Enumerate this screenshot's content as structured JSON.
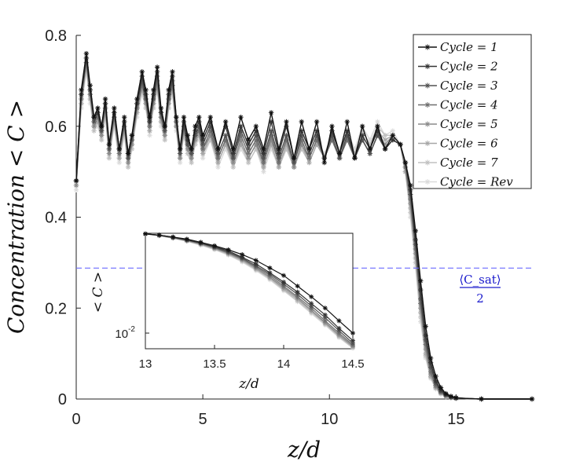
{
  "chart_data": {
    "type": "line",
    "title": "",
    "xlabel": "z/d",
    "ylabel": "Concentration < C >",
    "xlim": [
      0,
      18
    ],
    "ylim": [
      0,
      0.8
    ],
    "xticks": [
      "0",
      "5",
      "10",
      "15"
    ],
    "yticks": [
      "0",
      "0.2",
      "0.4",
      "0.6",
      "0.8"
    ],
    "legend": {
      "placement": "top-right"
    },
    "hline": {
      "y": 0.288,
      "label_num": "⟨C_sat⟩",
      "label_den": "2",
      "color": "#6b6bff"
    },
    "profile_x": [
      0,
      0.2,
      0.4,
      0.55,
      0.7,
      0.85,
      1.0,
      1.15,
      1.3,
      1.5,
      1.7,
      1.9,
      2.05,
      2.2,
      2.4,
      2.6,
      2.75,
      2.9,
      3.05,
      3.2,
      3.35,
      3.5,
      3.65,
      3.8,
      3.95,
      4.1,
      4.25,
      4.4,
      4.55,
      4.7,
      4.85,
      5.0,
      5.3,
      5.6,
      5.9,
      6.2,
      6.5,
      6.8,
      7.1,
      7.4,
      7.7,
      8.0,
      8.3,
      8.6,
      8.9,
      9.2,
      9.5,
      9.8,
      10.1,
      10.4,
      10.7,
      11.0,
      11.3,
      11.6,
      11.9,
      12.2,
      12.5,
      12.8,
      13.0,
      13.2,
      13.4,
      13.6,
      13.8,
      14.0,
      14.2,
      14.4,
      14.6,
      14.8,
      15.0,
      15.5,
      16.0,
      17.0,
      18.0
    ],
    "series": [
      {
        "name": "Cycle = 1",
        "color": "#111111",
        "values": [
          0.48,
          0.68,
          0.76,
          0.69,
          0.62,
          0.64,
          0.6,
          0.66,
          0.56,
          0.64,
          0.55,
          0.62,
          0.54,
          0.58,
          0.66,
          0.72,
          0.68,
          0.62,
          0.68,
          0.73,
          0.64,
          0.6,
          0.68,
          0.72,
          0.62,
          0.55,
          0.62,
          0.58,
          0.55,
          0.6,
          0.62,
          0.58,
          0.62,
          0.55,
          0.61,
          0.55,
          0.62,
          0.57,
          0.6,
          0.55,
          0.63,
          0.55,
          0.61,
          0.53,
          0.61,
          0.55,
          0.61,
          0.52,
          0.6,
          0.54,
          0.61,
          0.53,
          0.6,
          0.55,
          0.6,
          0.55,
          0.58,
          0.56,
          0.52,
          0.47,
          0.37,
          0.26,
          0.16,
          0.09,
          0.05,
          0.025,
          0.012,
          0.006,
          0.003,
          0.001,
          0.0,
          0.0,
          0.0
        ]
      },
      {
        "name": "Cycle = 2",
        "color": "#333333",
        "values": [
          0.48,
          0.67,
          0.75,
          0.68,
          0.62,
          0.63,
          0.6,
          0.65,
          0.56,
          0.63,
          0.55,
          0.61,
          0.54,
          0.58,
          0.65,
          0.71,
          0.67,
          0.61,
          0.67,
          0.72,
          0.63,
          0.6,
          0.67,
          0.71,
          0.62,
          0.55,
          0.61,
          0.57,
          0.55,
          0.59,
          0.61,
          0.57,
          0.61,
          0.55,
          0.6,
          0.54,
          0.6,
          0.56,
          0.59,
          0.54,
          0.61,
          0.54,
          0.6,
          0.53,
          0.59,
          0.55,
          0.59,
          0.53,
          0.59,
          0.54,
          0.59,
          0.53,
          0.58,
          0.55,
          0.59,
          0.55,
          0.57,
          0.56,
          0.52,
          0.46,
          0.35,
          0.24,
          0.14,
          0.08,
          0.04,
          0.02,
          0.01,
          0.005,
          0.002,
          0.001,
          0.0,
          0.0,
          0.0
        ]
      },
      {
        "name": "Cycle = 3",
        "color": "#505050",
        "values": [
          0.48,
          0.67,
          0.75,
          0.68,
          0.61,
          0.63,
          0.59,
          0.65,
          0.55,
          0.63,
          0.55,
          0.61,
          0.53,
          0.57,
          0.65,
          0.7,
          0.66,
          0.61,
          0.66,
          0.71,
          0.63,
          0.59,
          0.66,
          0.7,
          0.61,
          0.54,
          0.6,
          0.56,
          0.54,
          0.58,
          0.6,
          0.56,
          0.6,
          0.54,
          0.58,
          0.53,
          0.59,
          0.55,
          0.58,
          0.53,
          0.59,
          0.53,
          0.58,
          0.52,
          0.58,
          0.54,
          0.58,
          0.53,
          0.58,
          0.53,
          0.58,
          0.53,
          0.57,
          0.54,
          0.58,
          0.55,
          0.57,
          0.56,
          0.52,
          0.45,
          0.34,
          0.22,
          0.13,
          0.07,
          0.035,
          0.017,
          0.009,
          0.004,
          0.002,
          0.001,
          0.0,
          0.0,
          0.0
        ]
      },
      {
        "name": "Cycle = 4",
        "color": "#6e6e6e",
        "values": [
          0.48,
          0.66,
          0.74,
          0.67,
          0.61,
          0.62,
          0.59,
          0.64,
          0.55,
          0.62,
          0.54,
          0.6,
          0.53,
          0.57,
          0.64,
          0.69,
          0.66,
          0.6,
          0.66,
          0.7,
          0.62,
          0.59,
          0.66,
          0.69,
          0.61,
          0.54,
          0.6,
          0.56,
          0.54,
          0.58,
          0.59,
          0.55,
          0.59,
          0.53,
          0.57,
          0.53,
          0.58,
          0.54,
          0.57,
          0.52,
          0.58,
          0.52,
          0.57,
          0.52,
          0.57,
          0.53,
          0.57,
          0.53,
          0.57,
          0.53,
          0.57,
          0.53,
          0.57,
          0.54,
          0.58,
          0.55,
          0.57,
          0.56,
          0.51,
          0.44,
          0.33,
          0.21,
          0.12,
          0.06,
          0.03,
          0.015,
          0.008,
          0.004,
          0.002,
          0.001,
          0.0,
          0.0,
          0.0
        ]
      },
      {
        "name": "Cycle = 5",
        "color": "#8a8a8a",
        "values": [
          0.47,
          0.66,
          0.74,
          0.67,
          0.6,
          0.62,
          0.58,
          0.64,
          0.54,
          0.62,
          0.54,
          0.6,
          0.52,
          0.56,
          0.64,
          0.69,
          0.65,
          0.6,
          0.65,
          0.69,
          0.62,
          0.58,
          0.65,
          0.69,
          0.6,
          0.53,
          0.59,
          0.55,
          0.53,
          0.57,
          0.59,
          0.55,
          0.58,
          0.53,
          0.57,
          0.52,
          0.57,
          0.53,
          0.56,
          0.52,
          0.57,
          0.52,
          0.57,
          0.51,
          0.56,
          0.53,
          0.57,
          0.53,
          0.57,
          0.53,
          0.57,
          0.53,
          0.57,
          0.54,
          0.58,
          0.56,
          0.58,
          0.56,
          0.51,
          0.43,
          0.32,
          0.2,
          0.11,
          0.055,
          0.028,
          0.014,
          0.007,
          0.003,
          0.0015,
          0.001,
          0.0,
          0.0,
          0.0
        ]
      },
      {
        "name": "Cycle = 6",
        "color": "#a6a6a6",
        "values": [
          0.47,
          0.65,
          0.73,
          0.66,
          0.6,
          0.61,
          0.58,
          0.63,
          0.54,
          0.61,
          0.53,
          0.59,
          0.52,
          0.56,
          0.63,
          0.68,
          0.65,
          0.59,
          0.65,
          0.69,
          0.61,
          0.58,
          0.65,
          0.68,
          0.6,
          0.53,
          0.59,
          0.55,
          0.53,
          0.57,
          0.58,
          0.54,
          0.58,
          0.52,
          0.56,
          0.52,
          0.56,
          0.53,
          0.56,
          0.51,
          0.56,
          0.51,
          0.56,
          0.51,
          0.56,
          0.52,
          0.56,
          0.53,
          0.57,
          0.53,
          0.57,
          0.53,
          0.58,
          0.55,
          0.59,
          0.57,
          0.58,
          0.56,
          0.5,
          0.42,
          0.31,
          0.19,
          0.1,
          0.05,
          0.025,
          0.012,
          0.006,
          0.003,
          0.0015,
          0.001,
          0.0,
          0.0,
          0.0
        ]
      },
      {
        "name": "Cycle = 7",
        "color": "#c0c0c0",
        "values": [
          0.47,
          0.65,
          0.73,
          0.66,
          0.59,
          0.61,
          0.57,
          0.63,
          0.53,
          0.61,
          0.53,
          0.59,
          0.51,
          0.55,
          0.63,
          0.68,
          0.64,
          0.59,
          0.64,
          0.68,
          0.61,
          0.57,
          0.64,
          0.68,
          0.6,
          0.53,
          0.58,
          0.54,
          0.52,
          0.56,
          0.58,
          0.54,
          0.57,
          0.52,
          0.56,
          0.51,
          0.56,
          0.52,
          0.55,
          0.51,
          0.56,
          0.51,
          0.55,
          0.51,
          0.55,
          0.52,
          0.56,
          0.53,
          0.57,
          0.54,
          0.58,
          0.54,
          0.59,
          0.56,
          0.6,
          0.58,
          0.58,
          0.56,
          0.5,
          0.41,
          0.3,
          0.18,
          0.095,
          0.048,
          0.024,
          0.012,
          0.006,
          0.003,
          0.0015,
          0.001,
          0.0,
          0.0,
          0.0
        ]
      },
      {
        "name": "Cycle = Rev",
        "color": "#dadada",
        "values": [
          0.46,
          0.64,
          0.72,
          0.65,
          0.59,
          0.6,
          0.57,
          0.62,
          0.53,
          0.6,
          0.52,
          0.58,
          0.51,
          0.55,
          0.62,
          0.67,
          0.64,
          0.58,
          0.64,
          0.68,
          0.6,
          0.57,
          0.64,
          0.67,
          0.59,
          0.52,
          0.58,
          0.54,
          0.52,
          0.56,
          0.57,
          0.53,
          0.57,
          0.51,
          0.55,
          0.51,
          0.55,
          0.52,
          0.55,
          0.5,
          0.55,
          0.51,
          0.55,
          0.51,
          0.55,
          0.53,
          0.57,
          0.54,
          0.58,
          0.55,
          0.59,
          0.55,
          0.6,
          0.57,
          0.61,
          0.58,
          0.59,
          0.56,
          0.5,
          0.4,
          0.29,
          0.17,
          0.09,
          0.045,
          0.022,
          0.011,
          0.005,
          0.003,
          0.0015,
          0.001,
          0.0,
          0.0,
          0.0
        ]
      }
    ],
    "inset": {
      "xlabel": "z/d",
      "ylabel": "< C >",
      "xlim": [
        13,
        14.5
      ],
      "ylim": [
        0.0055,
        0.45
      ],
      "yscale": "log",
      "xticks": [
        "13",
        "13.5",
        "14",
        "14.5"
      ],
      "ytick_label": "10",
      "ytick_exp": "-2",
      "x": [
        13.0,
        13.1,
        13.2,
        13.3,
        13.4,
        13.5,
        13.6,
        13.7,
        13.8,
        13.9,
        14.0,
        14.1,
        14.2,
        14.3,
        14.4,
        14.5
      ],
      "series": [
        {
          "name": "Cycle = 1",
          "values": [
            0.44,
            0.42,
            0.39,
            0.36,
            0.32,
            0.28,
            0.24,
            0.2,
            0.16,
            0.12,
            0.09,
            0.06,
            0.04,
            0.026,
            0.016,
            0.01
          ]
        },
        {
          "name": "Cycle = 2",
          "values": [
            0.44,
            0.42,
            0.39,
            0.35,
            0.31,
            0.27,
            0.23,
            0.18,
            0.14,
            0.1,
            0.07,
            0.048,
            0.031,
            0.02,
            0.012,
            0.0075
          ]
        },
        {
          "name": "Cycle = 3",
          "values": [
            0.44,
            0.42,
            0.385,
            0.35,
            0.31,
            0.265,
            0.22,
            0.175,
            0.13,
            0.095,
            0.065,
            0.044,
            0.028,
            0.018,
            0.011,
            0.0068
          ]
        },
        {
          "name": "Cycle = 4",
          "values": [
            0.44,
            0.415,
            0.38,
            0.345,
            0.305,
            0.26,
            0.215,
            0.17,
            0.125,
            0.09,
            0.06,
            0.04,
            0.026,
            0.016,
            0.01,
            0.0064
          ]
        },
        {
          "name": "Cycle = 5",
          "values": [
            0.44,
            0.415,
            0.38,
            0.34,
            0.3,
            0.255,
            0.21,
            0.165,
            0.12,
            0.085,
            0.057,
            0.038,
            0.024,
            0.015,
            0.0094,
            0.0061
          ]
        },
        {
          "name": "Cycle = 6",
          "values": [
            0.44,
            0.41,
            0.375,
            0.335,
            0.295,
            0.25,
            0.205,
            0.16,
            0.115,
            0.082,
            0.054,
            0.036,
            0.023,
            0.0145,
            0.009,
            0.0059
          ]
        },
        {
          "name": "Cycle = 7",
          "values": [
            0.44,
            0.41,
            0.375,
            0.335,
            0.29,
            0.245,
            0.2,
            0.155,
            0.112,
            0.079,
            0.052,
            0.034,
            0.022,
            0.014,
            0.0087,
            0.0057
          ]
        },
        {
          "name": "Cycle = Rev",
          "values": [
            0.44,
            0.41,
            0.37,
            0.33,
            0.285,
            0.24,
            0.195,
            0.15,
            0.108,
            0.076,
            0.05,
            0.033,
            0.021,
            0.0135,
            0.0084,
            0.0056
          ]
        }
      ]
    }
  }
}
